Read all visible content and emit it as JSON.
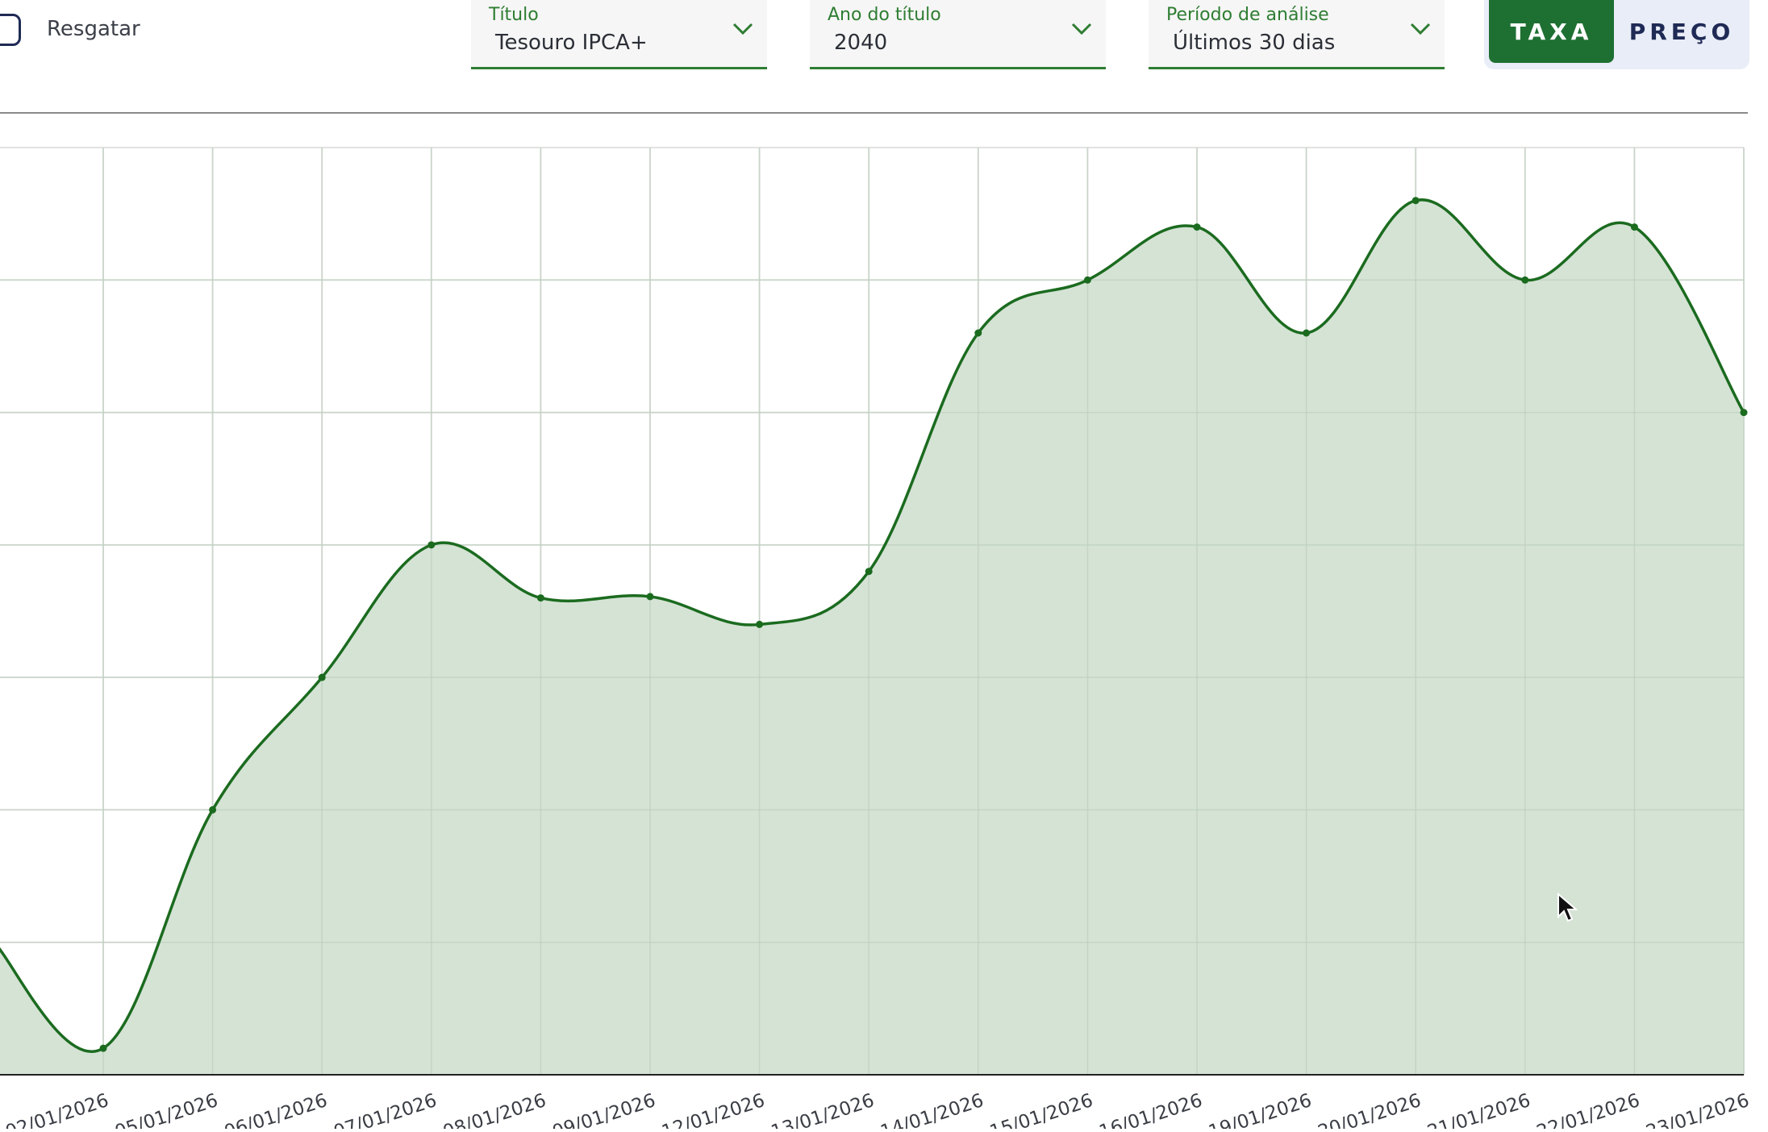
{
  "controls": {
    "checkbox": {
      "label": "Resgatar",
      "checked": false
    },
    "dropdowns": [
      {
        "label": "Título",
        "value": "Tesouro IPCA+"
      },
      {
        "label": "Ano do título",
        "value": "2040"
      },
      {
        "label": "Período de análise",
        "value": "Últimos 30 dias"
      }
    ],
    "toggle": {
      "options": [
        "TAXA",
        "PREÇO"
      ],
      "selected": "TAXA"
    }
  },
  "colors": {
    "accent": "#1e7032",
    "line": "#1b6b1f",
    "fill": "#d3e2d3",
    "label_green": "#2e7d32"
  },
  "chart_data": {
    "type": "area",
    "categories": [
      "02/01/2026",
      "05/01/2026",
      "06/01/2026",
      "07/01/2026",
      "08/01/2026",
      "09/01/2026",
      "12/01/2026",
      "13/01/2026",
      "14/01/2026",
      "15/01/2026",
      "16/01/2026",
      "19/01/2026",
      "20/01/2026",
      "21/01/2026",
      "22/01/2026",
      "23/01/2026"
    ],
    "series": [
      {
        "values": [
          0.2,
          2.0,
          3.0,
          4.0,
          3.6,
          3.61,
          3.4,
          3.8,
          5.6,
          6.0,
          6.4,
          5.6,
          6.6,
          6.0,
          6.4,
          5.0
        ]
      }
    ],
    "first_value": 1.0,
    "ylim": [
      0,
      7
    ],
    "yticks_count": 7,
    "grid": true,
    "legend": "none"
  }
}
